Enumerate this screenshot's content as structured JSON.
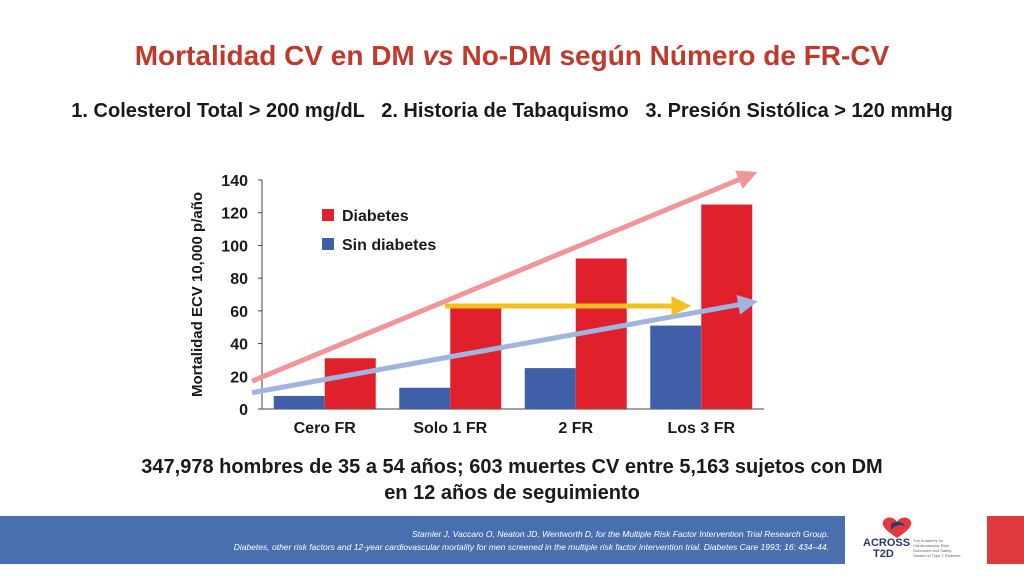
{
  "slide": {
    "title_part1": "Mortalidad  CV en DM ",
    "title_italic": "vs",
    "title_part2": " No-DM según Número de FR-CV",
    "subtitle": "1. Colesterol Total > 200 mg/dL   2. Historia de Tabaquismo   3. Presión Sistólica > 120 mmHg",
    "summary_line1": "347,978 hombres de 35 a 54 años; 603 muertes CV entre 5,163 sujetos con DM",
    "summary_line2": "en 12 años de seguimiento",
    "reference_line1": "Stamler J, Vaccaro O, Neaton JD, Wentworth D, for the Multiple Risk Factor Intervention Trial Research Group.",
    "reference_line2": "Diabetes, other risk factors and 12-year cardiovascular mortality for men screened in the multiple risk factor intervention trial. Diabetes Care 1993; 16: 434–44.",
    "logo_text_1": "ACROSS",
    "logo_text_2": "T2D",
    "logo_tagline": "The Academy for Cardiovascular Risk, Outcomes and Safety Studies in Type 2 Diabetes"
  },
  "colors": {
    "title": "#c0392b",
    "diabetes": "#e0202b",
    "no_diabetes": "#3f5fa8",
    "upper_arrow": "#f0959a",
    "lower_arrow": "#9fb4de",
    "middle_arrow": "#f4c11c"
  },
  "chart_data": {
    "type": "bar",
    "categories": [
      "Cero FR",
      "Solo 1 FR",
      "2 FR",
      "Los 3 FR"
    ],
    "series": [
      {
        "name": "Sin diabetes",
        "values": [
          8,
          13,
          25,
          51
        ]
      },
      {
        "name": "Diabetes",
        "values": [
          31,
          62,
          92,
          125
        ]
      }
    ],
    "ylabel": "Mortalidad ECV 10,000 p/año",
    "ylim": [
      0,
      140
    ],
    "yticks": [
      0,
      20,
      40,
      60,
      80,
      100,
      120,
      140
    ],
    "legend_position": "top-left",
    "grid": false,
    "trend_arrows": [
      {
        "series": "Diabetes",
        "from_y": 17,
        "to_y": 143
      },
      {
        "series": "Sin diabetes",
        "from_y": 10,
        "to_y": 65
      },
      {
        "series": "highlight",
        "from_category": "Solo 1 FR",
        "to_category": "Los 3 FR",
        "y": 63
      }
    ]
  }
}
